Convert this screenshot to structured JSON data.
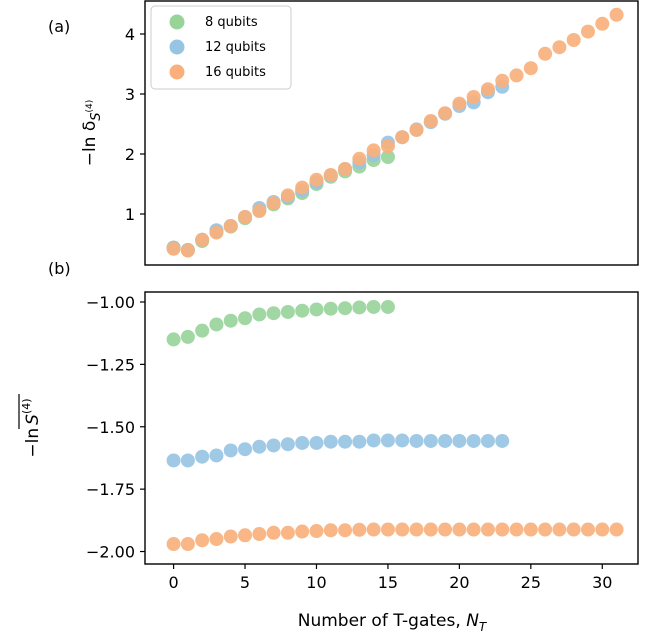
{
  "chart_data": [
    {
      "type": "scatter",
      "panel_label": "(a)",
      "ylabel_prefix": "−ln δ",
      "ylabel_sub": "S",
      "ylabel_sup": "(4)",
      "xlim": [
        -2.0,
        32.5
      ],
      "ylim": [
        0.15,
        4.55
      ],
      "xticks": [],
      "yticks": [
        1,
        2,
        3,
        4
      ],
      "ytick_labels": [
        "1",
        "2",
        "3",
        "4"
      ],
      "grid": false,
      "legend_position": "top-left",
      "series": [
        {
          "name": "8 qubits",
          "color": "#98d49a",
          "x": [
            0,
            1,
            2,
            3,
            4,
            5,
            6,
            7,
            8,
            9,
            10,
            11,
            12,
            13,
            14,
            15
          ],
          "y": [
            0.44,
            0.4,
            0.55,
            0.71,
            0.79,
            0.93,
            1.06,
            1.16,
            1.26,
            1.35,
            1.5,
            1.62,
            1.71,
            1.79,
            1.9,
            1.95
          ]
        },
        {
          "name": "12 qubits",
          "color": "#98c4e3",
          "x": [
            0,
            1,
            2,
            3,
            4,
            5,
            6,
            7,
            8,
            9,
            10,
            11,
            12,
            13,
            14,
            15,
            16,
            17,
            18,
            19,
            20,
            21,
            22,
            23
          ],
          "y": [
            0.44,
            0.4,
            0.57,
            0.73,
            0.8,
            0.95,
            1.1,
            1.2,
            1.28,
            1.39,
            1.53,
            1.64,
            1.75,
            1.86,
            1.98,
            2.19,
            2.28,
            2.41,
            2.53,
            2.67,
            2.8,
            2.86,
            3.03,
            3.12
          ]
        },
        {
          "name": "16 qubits",
          "color": "#f9b07c",
          "x": [
            0,
            1,
            2,
            3,
            4,
            5,
            6,
            7,
            8,
            9,
            10,
            11,
            12,
            13,
            14,
            15,
            16,
            17,
            18,
            19,
            20,
            21,
            22,
            23,
            24,
            25,
            26,
            27,
            28,
            29,
            30,
            31
          ],
          "y": [
            0.42,
            0.39,
            0.57,
            0.69,
            0.8,
            0.95,
            1.05,
            1.18,
            1.31,
            1.44,
            1.57,
            1.65,
            1.75,
            1.92,
            2.06,
            2.13,
            2.28,
            2.4,
            2.55,
            2.68,
            2.84,
            2.95,
            3.08,
            3.22,
            3.31,
            3.43,
            3.67,
            3.78,
            3.9,
            4.04,
            4.17,
            4.32
          ]
        }
      ]
    },
    {
      "type": "scatter",
      "panel_label": "(b)",
      "ylabel_prefix": "−ln",
      "ylabel_main": "S",
      "ylabel_sup": "(4)",
      "xlabel_prefix": "Number of T-gates, ",
      "xlabel_var": "N",
      "xlabel_sub": "T",
      "xlim": [
        -2.0,
        32.5
      ],
      "ylim": [
        -2.05,
        -0.96
      ],
      "xticks": [
        0,
        5,
        10,
        15,
        20,
        25,
        30
      ],
      "xtick_labels": [
        "0",
        "5",
        "10",
        "15",
        "20",
        "25",
        "30"
      ],
      "yticks": [
        -1.0,
        -1.25,
        -1.5,
        -1.75,
        -2.0
      ],
      "ytick_labels": [
        "−1.00",
        "−1.25",
        "−1.50",
        "−1.75",
        "−2.00"
      ],
      "grid": false,
      "series": [
        {
          "name": "8 qubits",
          "color": "#98d49a",
          "x": [
            0,
            1,
            2,
            3,
            4,
            5,
            6,
            7,
            8,
            9,
            10,
            11,
            12,
            13,
            14,
            15
          ],
          "y": [
            -1.15,
            -1.14,
            -1.115,
            -1.09,
            -1.075,
            -1.065,
            -1.05,
            -1.045,
            -1.04,
            -1.035,
            -1.03,
            -1.027,
            -1.025,
            -1.022,
            -1.02,
            -1.02
          ]
        },
        {
          "name": "12 qubits",
          "color": "#98c4e3",
          "x": [
            0,
            1,
            2,
            3,
            4,
            5,
            6,
            7,
            8,
            9,
            10,
            11,
            12,
            13,
            14,
            15,
            16,
            17,
            18,
            19,
            20,
            21,
            22,
            23
          ],
          "y": [
            -1.635,
            -1.635,
            -1.62,
            -1.615,
            -1.595,
            -1.59,
            -1.58,
            -1.575,
            -1.57,
            -1.565,
            -1.565,
            -1.56,
            -1.56,
            -1.56,
            -1.555,
            -1.555,
            -1.555,
            -1.557,
            -1.557,
            -1.557,
            -1.557,
            -1.557,
            -1.557,
            -1.557
          ]
        },
        {
          "name": "16 qubits",
          "color": "#f9b07c",
          "x": [
            0,
            1,
            2,
            3,
            4,
            5,
            6,
            7,
            8,
            9,
            10,
            11,
            12,
            13,
            14,
            15,
            16,
            17,
            18,
            19,
            20,
            21,
            22,
            23,
            24,
            25,
            26,
            27,
            28,
            29,
            30,
            31
          ],
          "y": [
            -1.97,
            -1.97,
            -1.955,
            -1.95,
            -1.94,
            -1.935,
            -1.93,
            -1.925,
            -1.925,
            -1.92,
            -1.918,
            -1.915,
            -1.915,
            -1.913,
            -1.912,
            -1.912,
            -1.912,
            -1.912,
            -1.912,
            -1.912,
            -1.912,
            -1.912,
            -1.912,
            -1.912,
            -1.912,
            -1.912,
            -1.912,
            -1.912,
            -1.912,
            -1.912,
            -1.912,
            -1.912
          ]
        }
      ]
    }
  ]
}
